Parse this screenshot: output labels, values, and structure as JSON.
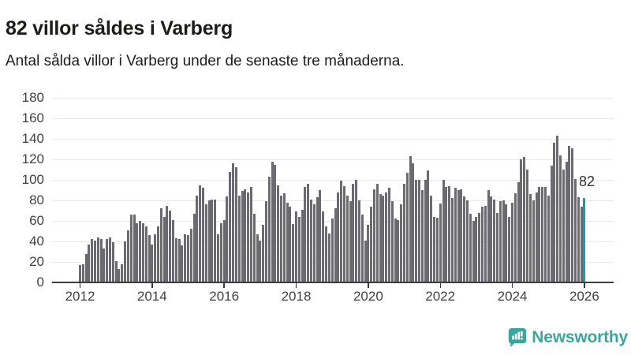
{
  "header": {
    "title": "82 villor såldes i Varberg",
    "subtitle": "Antal sålda villor i Varberg under de senaste tre månaderna."
  },
  "chart_data": {
    "type": "bar",
    "title": "82 villor såldes i Varberg",
    "subtitle": "Antal sålda villor i Varberg under de senaste tre månaderna.",
    "x_unit": "month",
    "x_start": "2012-01",
    "x_end": "2026-01",
    "ylim": [
      0,
      180
    ],
    "y_ticks": [
      0,
      20,
      40,
      60,
      80,
      100,
      120,
      140,
      160,
      180
    ],
    "x_tick_labels": [
      "2012",
      "2014",
      "2016",
      "2018",
      "2020",
      "2022",
      "2024",
      "2026"
    ],
    "grid": true,
    "bar_color": "#6a6a70",
    "highlight_color": "#16a099",
    "values_by_year": {
      "2012": [
        17,
        18,
        28,
        37,
        42,
        41,
        44,
        42,
        33,
        42,
        44,
        39
      ],
      "2013": [
        21,
        13,
        18,
        40,
        51,
        66,
        66,
        58,
        60,
        58,
        55,
        46
      ],
      "2014": [
        37,
        47,
        55,
        72,
        64,
        75,
        70,
        61,
        43,
        42,
        36,
        47
      ],
      "2015": [
        46,
        52,
        67,
        85,
        95,
        92,
        76,
        80,
        81,
        81,
        47,
        58
      ],
      "2016": [
        61,
        84,
        108,
        116,
        112,
        85,
        89,
        91,
        88,
        93,
        67,
        47
      ],
      "2017": [
        41,
        56,
        79,
        103,
        118,
        115,
        95,
        85,
        87,
        78,
        74,
        57
      ],
      "2018": [
        69,
        64,
        71,
        93,
        96,
        81,
        76,
        83,
        90,
        69,
        55,
        48
      ],
      "2019": [
        62,
        72,
        88,
        99,
        94,
        85,
        79,
        96,
        100,
        80,
        66,
        41
      ],
      "2020": [
        56,
        74,
        91,
        96,
        86,
        85,
        88,
        92,
        79,
        62,
        61,
        76
      ],
      "2021": [
        96,
        107,
        123,
        116,
        100,
        100,
        90,
        100,
        109,
        85,
        64,
        63
      ],
      "2022": [
        77,
        100,
        93,
        94,
        82,
        92,
        90,
        91,
        84,
        80,
        67,
        60
      ],
      "2023": [
        64,
        68,
        74,
        75,
        90,
        84,
        81,
        68,
        79,
        80,
        76,
        64
      ],
      "2024": [
        78,
        87,
        98,
        120,
        122,
        110,
        86,
        80,
        88,
        93,
        93,
        93
      ],
      "2025": [
        85,
        114,
        136,
        143,
        124,
        110,
        118,
        133,
        131,
        101,
        83,
        74
      ],
      "2026": [
        82
      ]
    },
    "highlight": {
      "month": "2026-01",
      "value": 82,
      "label": "82"
    }
  },
  "footer": {
    "brand": "Newsworthy",
    "brand_color": "#3aa79d"
  }
}
